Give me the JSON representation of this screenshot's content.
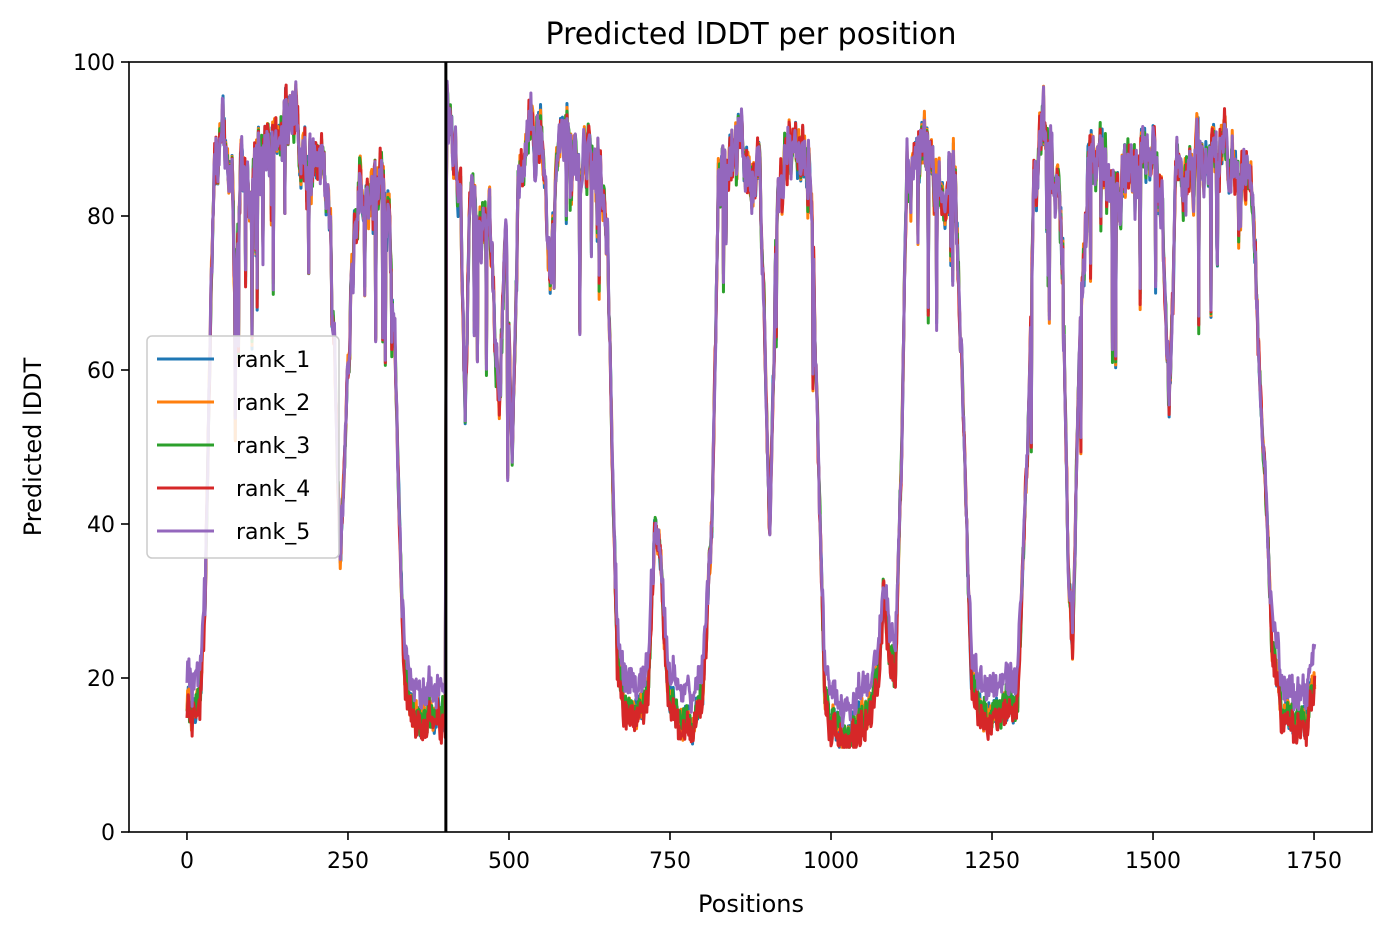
{
  "chart_data": {
    "type": "line",
    "title": "Predicted lDDT per position",
    "xlabel": "Positions",
    "ylabel": "Predicted lDDT",
    "xlim": [
      -90,
      1840
    ],
    "ylim": [
      0,
      100
    ],
    "xticks": [
      0,
      250,
      500,
      750,
      1000,
      1250,
      1500,
      1750
    ],
    "yticks": [
      0,
      20,
      40,
      60,
      80,
      100
    ],
    "grid": false,
    "legend_position": "center-left",
    "chain_break": 402,
    "chain_break_color": "#000000",
    "profile": [
      [
        0,
        17
      ],
      [
        10,
        15
      ],
      [
        20,
        17
      ],
      [
        28,
        30
      ],
      [
        35,
        60
      ],
      [
        42,
        85
      ],
      [
        55,
        90
      ],
      [
        70,
        86
      ],
      [
        75,
        66
      ],
      [
        85,
        90
      ],
      [
        100,
        84
      ],
      [
        115,
        89
      ],
      [
        130,
        87
      ],
      [
        150,
        91
      ],
      [
        165,
        93
      ],
      [
        180,
        88
      ],
      [
        195,
        86
      ],
      [
        210,
        90
      ],
      [
        222,
        80
      ],
      [
        230,
        60
      ],
      [
        238,
        35
      ],
      [
        245,
        48
      ],
      [
        255,
        72
      ],
      [
        268,
        85
      ],
      [
        285,
        82
      ],
      [
        300,
        86
      ],
      [
        315,
        78
      ],
      [
        322,
        65
      ],
      [
        330,
        40
      ],
      [
        338,
        20
      ],
      [
        350,
        16
      ],
      [
        365,
        15
      ],
      [
        380,
        16
      ],
      [
        395,
        15
      ],
      [
        400,
        15
      ],
      [
        403,
        92
      ],
      [
        415,
        90
      ],
      [
        425,
        82
      ],
      [
        432,
        55
      ],
      [
        440,
        84
      ],
      [
        455,
        75
      ],
      [
        470,
        80
      ],
      [
        485,
        56
      ],
      [
        495,
        78
      ],
      [
        505,
        49
      ],
      [
        515,
        86
      ],
      [
        530,
        92
      ],
      [
        550,
        90
      ],
      [
        565,
        72
      ],
      [
        580,
        92
      ],
      [
        595,
        88
      ],
      [
        610,
        85
      ],
      [
        625,
        90
      ],
      [
        640,
        87
      ],
      [
        652,
        78
      ],
      [
        660,
        50
      ],
      [
        668,
        22
      ],
      [
        680,
        16
      ],
      [
        700,
        16
      ],
      [
        715,
        18
      ],
      [
        727,
        40
      ],
      [
        735,
        36
      ],
      [
        745,
        20
      ],
      [
        760,
        15
      ],
      [
        780,
        14
      ],
      [
        800,
        16
      ],
      [
        815,
        40
      ],
      [
        825,
        85
      ],
      [
        840,
        88
      ],
      [
        860,
        90
      ],
      [
        875,
        84
      ],
      [
        890,
        88
      ],
      [
        898,
        60
      ],
      [
        905,
        38
      ],
      [
        915,
        80
      ],
      [
        930,
        88
      ],
      [
        950,
        90
      ],
      [
        970,
        84
      ],
      [
        980,
        50
      ],
      [
        990,
        18
      ],
      [
        1000,
        14
      ],
      [
        1020,
        13
      ],
      [
        1040,
        14
      ],
      [
        1060,
        16
      ],
      [
        1075,
        22
      ],
      [
        1082,
        32
      ],
      [
        1090,
        24
      ],
      [
        1100,
        20
      ],
      [
        1110,
        50
      ],
      [
        1118,
        88
      ],
      [
        1130,
        85
      ],
      [
        1150,
        88
      ],
      [
        1170,
        82
      ],
      [
        1190,
        86
      ],
      [
        1200,
        70
      ],
      [
        1210,
        40
      ],
      [
        1218,
        20
      ],
      [
        1230,
        16
      ],
      [
        1250,
        15
      ],
      [
        1270,
        16
      ],
      [
        1290,
        18
      ],
      [
        1305,
        50
      ],
      [
        1315,
        85
      ],
      [
        1330,
        90
      ],
      [
        1345,
        85
      ],
      [
        1360,
        75
      ],
      [
        1368,
        35
      ],
      [
        1375,
        25
      ],
      [
        1385,
        60
      ],
      [
        1400,
        86
      ],
      [
        1420,
        88
      ],
      [
        1440,
        83
      ],
      [
        1460,
        86
      ],
      [
        1480,
        85
      ],
      [
        1500,
        88
      ],
      [
        1515,
        82
      ],
      [
        1525,
        55
      ],
      [
        1535,
        84
      ],
      [
        1555,
        86
      ],
      [
        1575,
        88
      ],
      [
        1600,
        90
      ],
      [
        1625,
        88
      ],
      [
        1645,
        86
      ],
      [
        1655,
        80
      ],
      [
        1665,
        60
      ],
      [
        1675,
        45
      ],
      [
        1685,
        24
      ],
      [
        1700,
        16
      ],
      [
        1720,
        14
      ],
      [
        1740,
        15
      ],
      [
        1750,
        20
      ]
    ],
    "series": [
      {
        "name": "rank_1",
        "color": "#1f77b4"
      },
      {
        "name": "rank_2",
        "color": "#ff7f0e"
      },
      {
        "name": "rank_3",
        "color": "#2ca02c"
      },
      {
        "name": "rank_4",
        "color": "#d62728"
      },
      {
        "name": "rank_5",
        "color": "#9467bd"
      }
    ]
  }
}
